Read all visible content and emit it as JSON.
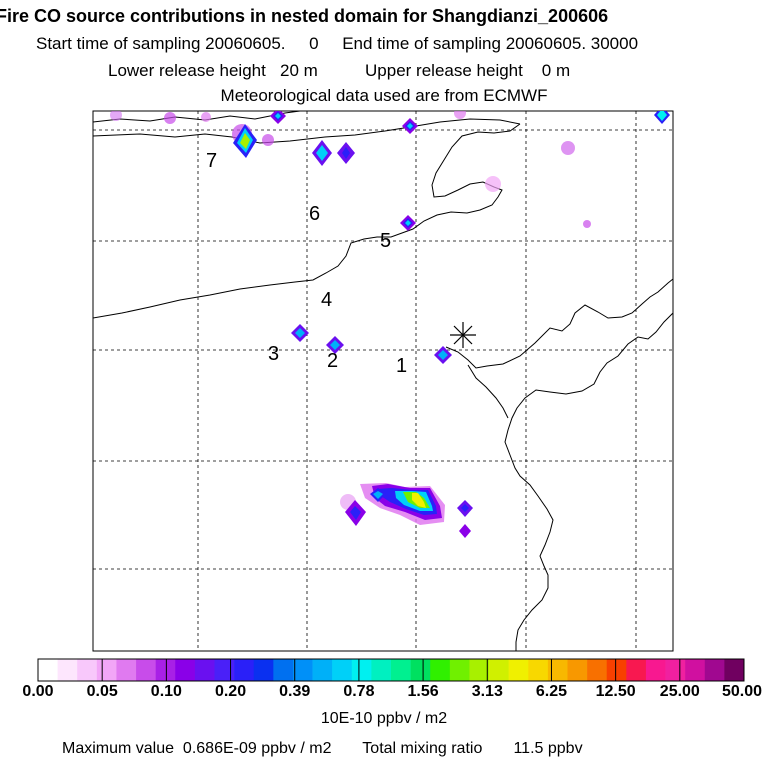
{
  "header": {
    "title": "Fire CO source contributions in nested domain for Shangdianzi_200606",
    "start_label": "Start time of sampling",
    "start_value": "20060605.     0",
    "end_label": "End time of sampling",
    "end_value": "20060605. 30000",
    "lower_label": "Lower release height",
    "lower_value": "20 m",
    "upper_label": "Upper release height",
    "upper_value": "0 m",
    "met_text": "Meteorological data used are from ECMWF"
  },
  "map": {
    "station_marker": "asterisk-icon",
    "site_labels": [
      "1",
      "2",
      "3",
      "4",
      "5",
      "6",
      "7"
    ]
  },
  "colorbar": {
    "colors": [
      "#ffffff",
      "#fde6fd",
      "#f8c8fb",
      "#f2a6f7",
      "#e07af0",
      "#c84cea",
      "#a820e6",
      "#8a00e8",
      "#6a10f0",
      "#4a20f8",
      "#2a20f8",
      "#0a30f0",
      "#0070f0",
      "#0090f8",
      "#00b0f8",
      "#00d0f8",
      "#00f0f0",
      "#00f0c0",
      "#00f090",
      "#00e060",
      "#30f000",
      "#70f000",
      "#a8f000",
      "#d0f000",
      "#f0f000",
      "#f8d800",
      "#f8b800",
      "#f89800",
      "#f87000",
      "#f84000",
      "#f81850",
      "#f81890",
      "#f020a0",
      "#d010a0",
      "#a00890",
      "#700060"
    ],
    "tick_labels": [
      "0.00",
      "0.05",
      "0.10",
      "0.20",
      "0.39",
      "0.78",
      "1.56",
      "3.13",
      "6.25",
      "12.50",
      "25.00",
      "50.00"
    ],
    "units": "10E-10 ppbv / m2"
  },
  "footer": {
    "max_label": "Maximum value",
    "max_value": "0.686E-09 ppbv / m2",
    "total_label": "Total mixing ratio",
    "total_value": "11.5 ppbv"
  }
}
